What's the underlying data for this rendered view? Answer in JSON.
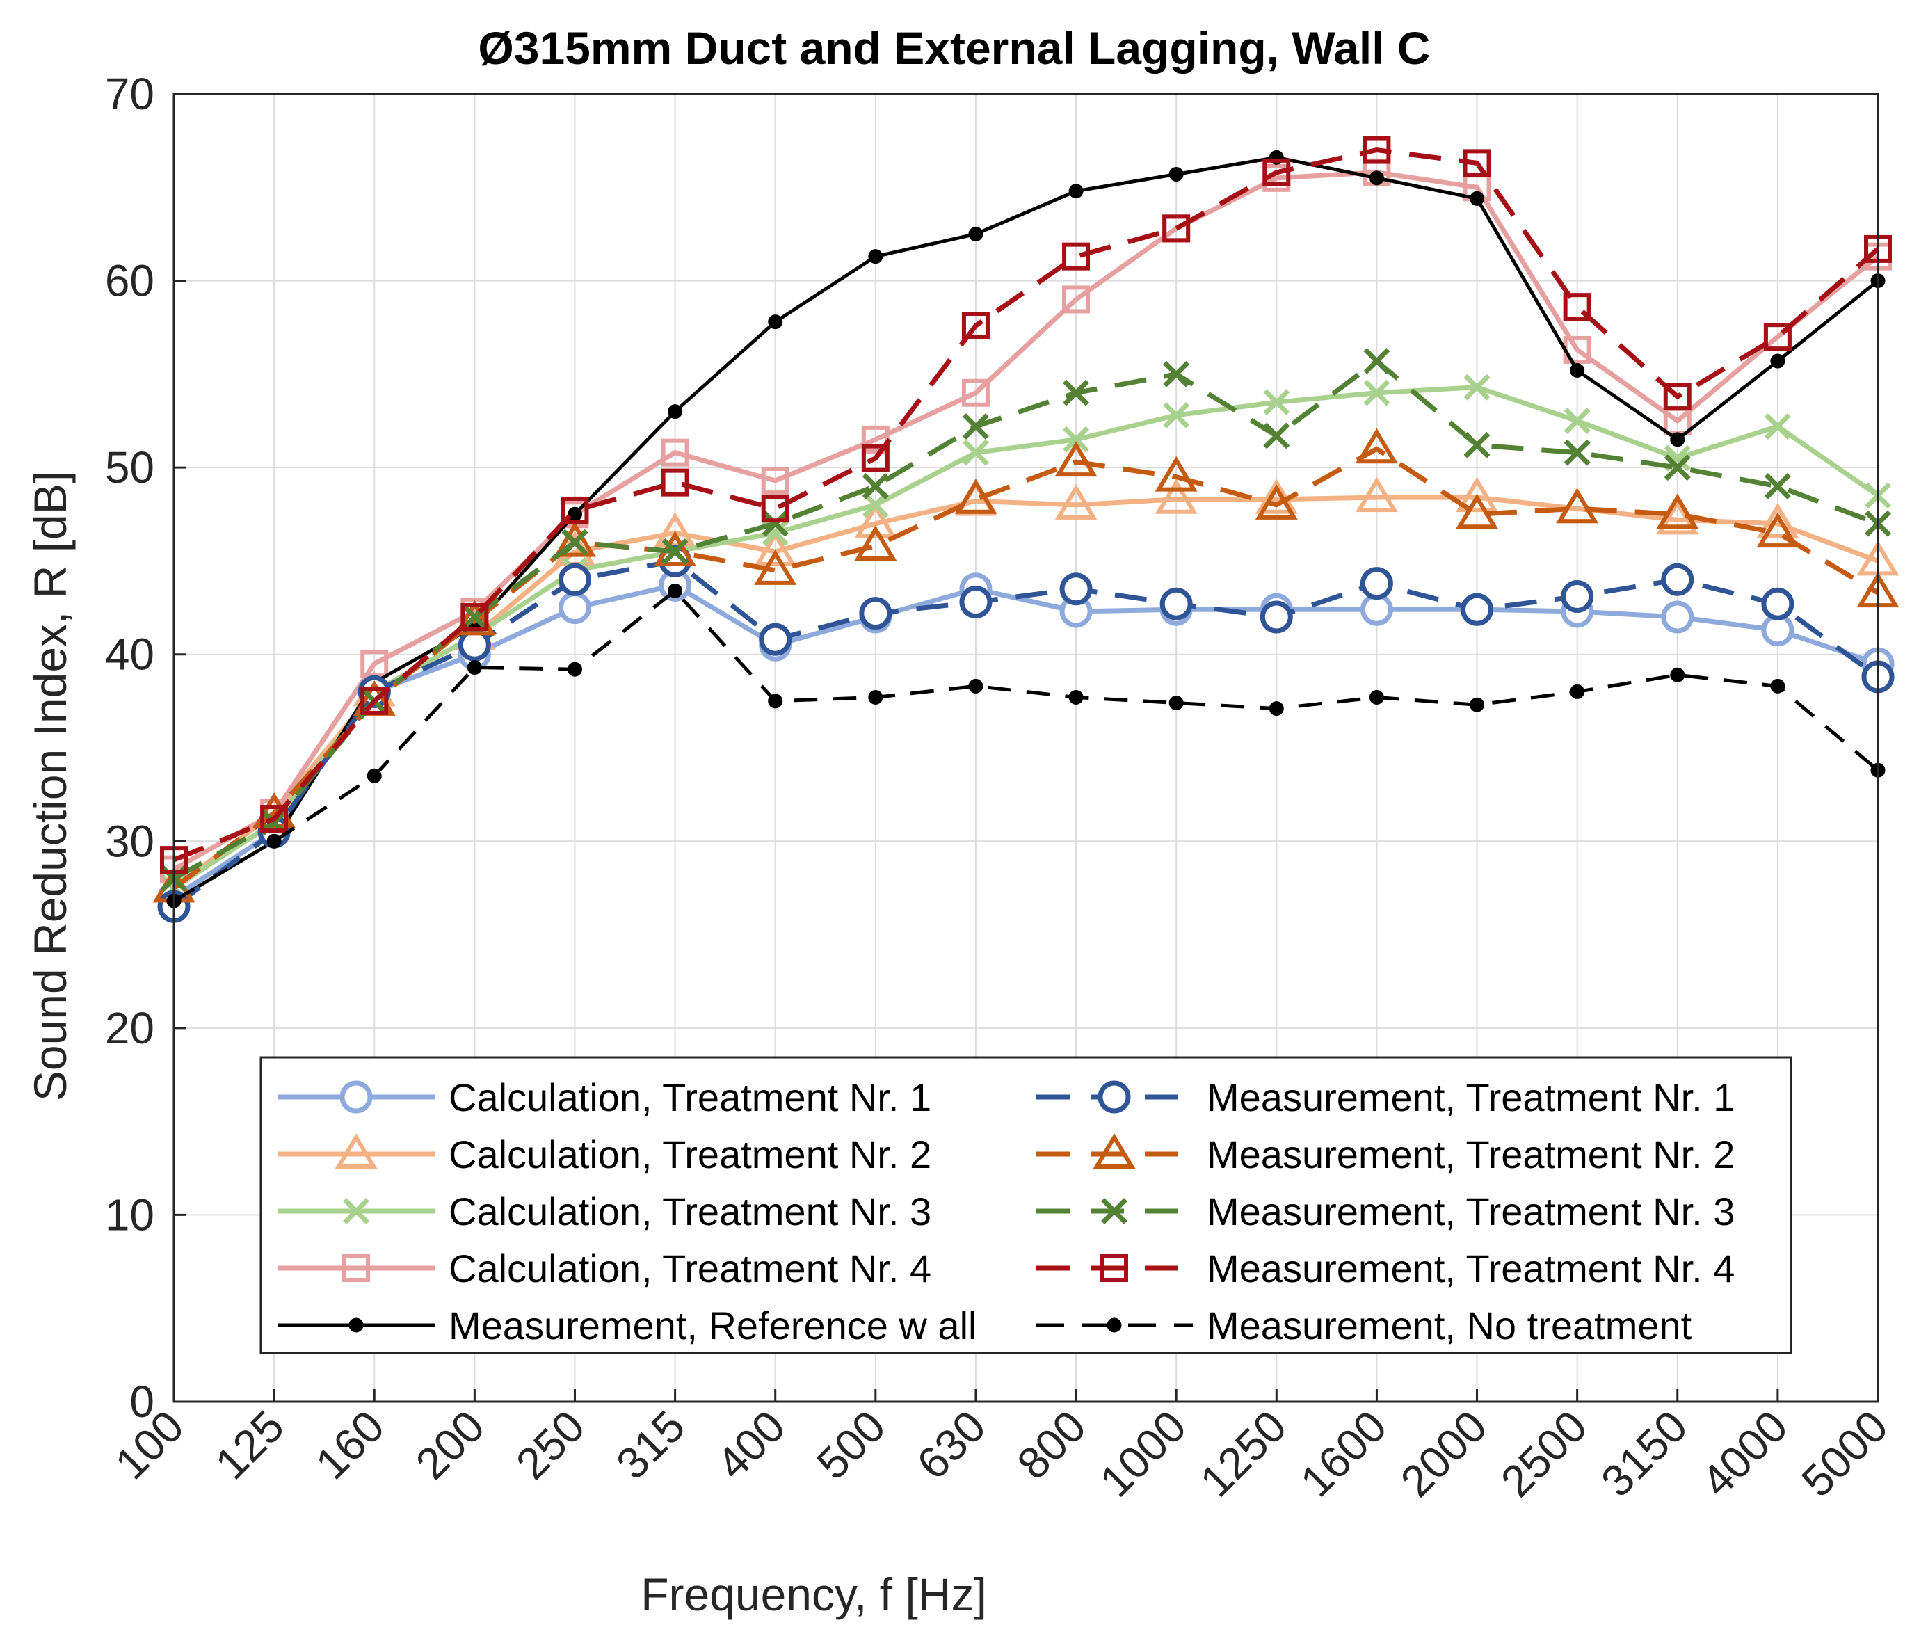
{
  "chart_data": {
    "type": "line",
    "title": "Ø315mm Duct and External Lagging, Wall C",
    "xlabel": "Frequency, f [Hz]",
    "ylabel": "Sound Reduction Index, R [dB]",
    "ylim": [
      0,
      70
    ],
    "yticks": [
      "0",
      "10",
      "20",
      "30",
      "40",
      "50",
      "60",
      "70"
    ],
    "categories": [
      "100",
      "125",
      "160",
      "200",
      "250",
      "315",
      "400",
      "500",
      "630",
      "800",
      "1000",
      "1250",
      "1600",
      "2000",
      "2500",
      "3150",
      "4000",
      "5000"
    ],
    "grid": true,
    "legend_position": "bottom",
    "series": [
      {
        "name": "Calculation, Treatment Nr. 1",
        "color": "#8EA9DB",
        "dash": "solid",
        "marker": "circle",
        "values": [
          27.0,
          30.5,
          38.0,
          40.0,
          42.5,
          43.7,
          40.5,
          42.0,
          43.5,
          42.3,
          42.4,
          42.4,
          42.4,
          42.4,
          42.3,
          42.0,
          41.3,
          39.5
        ]
      },
      {
        "name": "Calculation, Treatment Nr. 2",
        "color": "#F4B183",
        "dash": "solid",
        "marker": "triangle",
        "values": [
          27.5,
          31.5,
          38.0,
          41.0,
          45.5,
          46.5,
          45.5,
          47.0,
          48.2,
          48.0,
          48.3,
          48.3,
          48.4,
          48.4,
          47.8,
          47.2,
          47.0,
          45.0
        ]
      },
      {
        "name": "Calculation, Treatment Nr. 3",
        "color": "#A9D18E",
        "dash": "solid",
        "marker": "x",
        "values": [
          27.5,
          31.0,
          38.0,
          41.0,
          44.5,
          45.5,
          46.5,
          48.0,
          50.8,
          51.5,
          52.8,
          53.5,
          54.0,
          54.3,
          52.5,
          50.5,
          52.2,
          48.5
        ]
      },
      {
        "name": "Calculation, Treatment Nr. 4",
        "color": "#E6A0A0",
        "dash": "solid",
        "marker": "square",
        "values": [
          28.5,
          31.5,
          39.5,
          42.3,
          47.5,
          50.8,
          49.3,
          51.5,
          54.0,
          59.0,
          62.8,
          65.5,
          65.8,
          65.0,
          56.3,
          52.5,
          57.0,
          61.3
        ]
      },
      {
        "name": "Measurement, Reference w all",
        "color": "#000000",
        "dash": "solid",
        "marker": "dot",
        "values": [
          26.8,
          30.0,
          38.5,
          41.5,
          47.5,
          53.0,
          57.8,
          61.3,
          62.5,
          64.8,
          65.7,
          66.6,
          65.5,
          64.4,
          55.2,
          51.5,
          55.7,
          60.0
        ]
      },
      {
        "name": "Measurement, Treatment Nr. 1",
        "color": "#2F5597",
        "dash": "dashed",
        "marker": "circle",
        "values": [
          26.5,
          30.5,
          38.0,
          40.5,
          44.0,
          45.0,
          40.8,
          42.2,
          42.8,
          43.5,
          42.7,
          42.0,
          43.8,
          42.4,
          43.1,
          44.0,
          42.7,
          38.8
        ]
      },
      {
        "name": "Measurement, Treatment Nr. 2",
        "color": "#C55A11",
        "dash": "dashed",
        "marker": "triangle",
        "values": [
          27.5,
          31.5,
          37.5,
          41.8,
          46.0,
          45.5,
          44.5,
          45.8,
          48.3,
          50.3,
          49.5,
          48.0,
          51.0,
          47.5,
          47.8,
          47.5,
          46.5,
          43.3
        ]
      },
      {
        "name": "Measurement, Treatment Nr. 3",
        "color": "#548235",
        "dash": "dashed",
        "marker": "x",
        "values": [
          28.0,
          31.0,
          37.5,
          42.0,
          46.0,
          45.5,
          47.0,
          49.0,
          52.2,
          54.0,
          55.0,
          51.7,
          55.7,
          51.2,
          50.8,
          50.0,
          49.0,
          47.0
        ]
      },
      {
        "name": "Measurement, Treatment Nr. 4",
        "color": "#A50F15",
        "dash": "dashed",
        "marker": "square",
        "values": [
          29.0,
          31.2,
          37.5,
          42.0,
          47.7,
          49.2,
          47.8,
          50.5,
          57.6,
          61.3,
          62.8,
          65.8,
          67.0,
          66.3,
          58.6,
          53.8,
          57.0,
          61.7
        ]
      },
      {
        "name": "Measurement, No treatment",
        "color": "#000000",
        "dash": "dashed",
        "marker": "dot",
        "values": [
          26.8,
          30.0,
          33.5,
          39.3,
          39.2,
          43.4,
          37.5,
          37.7,
          38.3,
          37.7,
          37.4,
          37.1,
          37.7,
          37.3,
          38.0,
          38.9,
          38.3,
          33.8
        ]
      }
    ]
  }
}
